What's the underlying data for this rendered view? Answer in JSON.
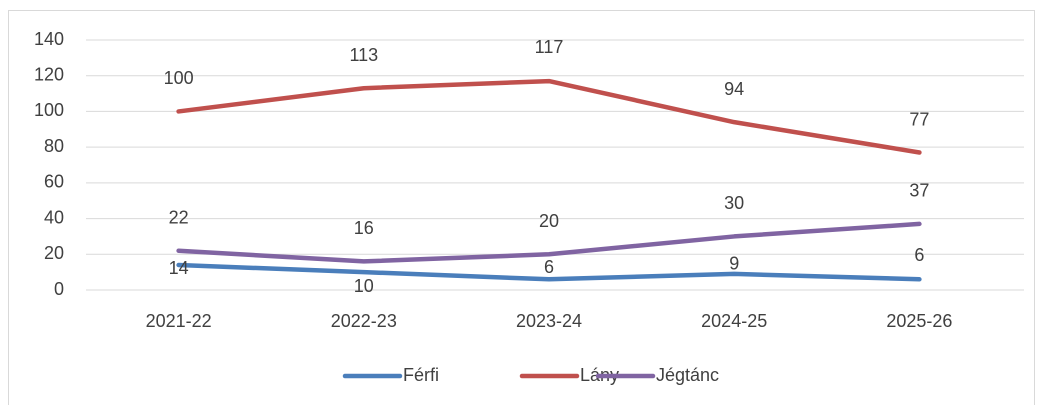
{
  "chart_data": {
    "type": "line",
    "categories": [
      "2021-22",
      "2022-23",
      "2023-24",
      "2024-25",
      "2025-26"
    ],
    "series": [
      {
        "name": "Férfi",
        "color": "#4a7ebb",
        "values": [
          14,
          10,
          6,
          9,
          6
        ]
      },
      {
        "name": "Lány",
        "color": "#c0504d",
        "values": [
          100,
          113,
          117,
          94,
          77
        ]
      },
      {
        "name": "Jégtánc",
        "color": "#8064a2",
        "values": [
          22,
          16,
          20,
          30,
          37
        ]
      }
    ],
    "ylim": [
      0,
      140
    ],
    "yticks": [
      0,
      20,
      40,
      60,
      80,
      100,
      120,
      140
    ],
    "grid": true,
    "legend": "bottom"
  }
}
